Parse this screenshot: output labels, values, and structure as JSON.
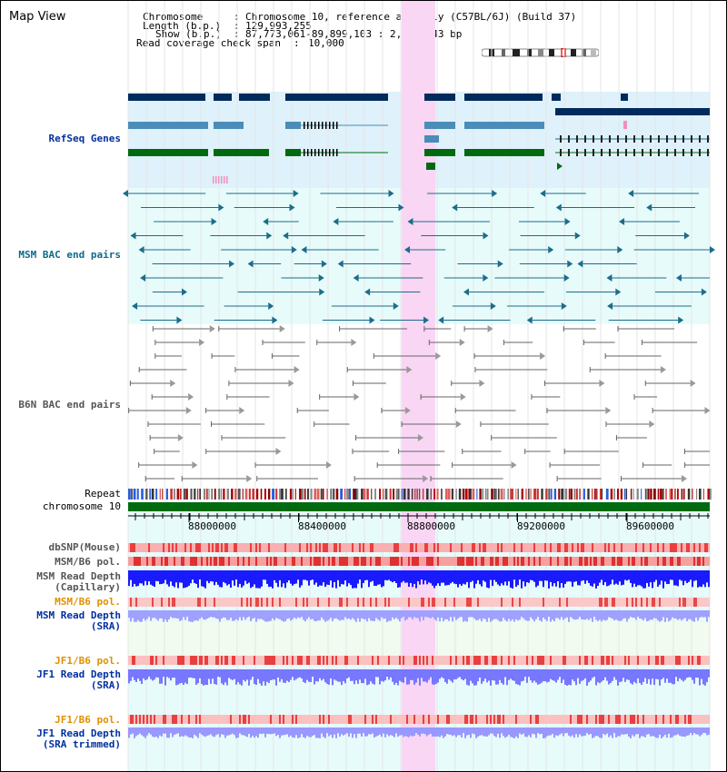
{
  "title": "Map View",
  "info": {
    "chromosome_label": "Chromosome",
    "chromosome_value": "Chromosome 10, reference assembly (C57BL/6J) (Build 37)",
    "length_label": "Length (b.p.)",
    "length_value": "129,993,255",
    "show_label": "Show (b.p.)",
    "show_value": "87,773,061-89,899,103 : 2,126,043 bp",
    "coverage_label": "Read coverage check span",
    "coverage_value": "10,000"
  },
  "tracks": {
    "refseq": "RefSeq Genes",
    "msm_bac": "MSM BAC end pairs",
    "b6n_bac": "B6N BAC end pairs",
    "repeat": "Repeat",
    "chromosome": "chromosome 10",
    "dbsnp": "dbSNP(Mouse)",
    "msm_b6_pol_1": "MSM/B6 pol.",
    "msm_read_depth_cap_1": "MSM Read Depth",
    "msm_read_depth_cap_2": "(Capillary)",
    "msm_b6_pol_2": "MSM/B6 pol.",
    "msm_read_depth_sra_1": "MSM Read Depth",
    "msm_read_depth_sra_2": "(SRA)",
    "jf1_b6_pol_1": "JF1/B6 pol.",
    "jf1_read_depth_sra_1": "JF1 Read Depth",
    "jf1_read_depth_sra_2": "(SRA)",
    "jf1_b6_pol_2": "JF1/B6 pol.",
    "jf1_read_depth_trim_1": "JF1 Read Depth",
    "jf1_read_depth_trim_2": "(SRA trimmed)"
  },
  "axis": {
    "ticks": [
      "88000000",
      "88400000",
      "88800000",
      "89200000",
      "89600000"
    ],
    "range": [
      87773061,
      89899103
    ]
  },
  "colors": {
    "highlight": "#f8d6f4",
    "refseq_bg": "#dff1fa",
    "msm_bg": "#e7fbfb",
    "dark_navy": "#002a5c",
    "steel_blue": "#4a8db8",
    "dark_green": "#006a10",
    "teal": "#1b6d8a",
    "gray_pair": "#666666",
    "read_depth": "#1a1aff",
    "jf1_depth": "#7777ff"
  }
}
